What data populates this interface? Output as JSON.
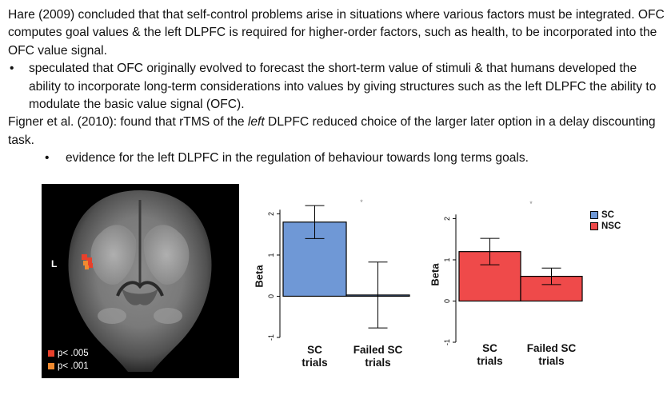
{
  "text": {
    "p1": "Hare (2009) concluded that that self-control problems arise in situations where various factors must be integrated. OFC computes goal values & the left DLPFC is required for higher-order factors, such as health, to be incorporated into the OFC value signal.",
    "b1": "speculated that OFC originally evolved to forecast the short-term value of stimuli & that humans developed the ability to incorporate long-term considerations into values by giving structures such as the left DLPFC the ability to modulate the basic value signal (OFC).",
    "p2a": "Figner et al. (2010): found that rTMS of the ",
    "p2em": "left",
    "p2b": " DLPFC reduced choice of the larger later option in a delay discounting task.",
    "b2": "evidence for the left DLPFC in the regulation of behaviour towards long terms goals.",
    "bullet_glyph": "•"
  },
  "brain": {
    "side_label": "L",
    "legend": [
      {
        "label": "p< .005",
        "color": "#e8402b"
      },
      {
        "label": "p< .001",
        "color": "#f08a30"
      }
    ]
  },
  "chart_legend": [
    {
      "label": "SC",
      "color": "#6f98d6"
    },
    {
      "label": "NSC",
      "color": "#ef4a4a"
    }
  ],
  "chart_data": [
    {
      "type": "bar",
      "categories": [
        "SC trials",
        "Failed SC trials"
      ],
      "category_lines": [
        [
          "SC",
          "trials"
        ],
        [
          "Failed SC",
          "trials"
        ]
      ],
      "values": [
        1.8,
        0.03
      ],
      "errors": [
        0.4,
        0.8
      ],
      "color": "#6f98d6",
      "ylabel": "Beta",
      "ylim": [
        -1,
        2.3
      ],
      "yticks": [
        "-1",
        "0",
        "1",
        "2"
      ],
      "annotation": "*"
    },
    {
      "type": "bar",
      "categories": [
        "SC trials",
        "Failed SC trials"
      ],
      "category_lines": [
        [
          "SC",
          "trials"
        ],
        [
          "Failed SC",
          "trials"
        ]
      ],
      "values": [
        1.2,
        0.6
      ],
      "errors": [
        0.32,
        0.2
      ],
      "color": "#ef4a4a",
      "ylabel": "Beta",
      "ylim": [
        -1,
        2.3
      ],
      "yticks": [
        "-1",
        "0",
        "1",
        "2"
      ],
      "annotation": "*"
    }
  ]
}
